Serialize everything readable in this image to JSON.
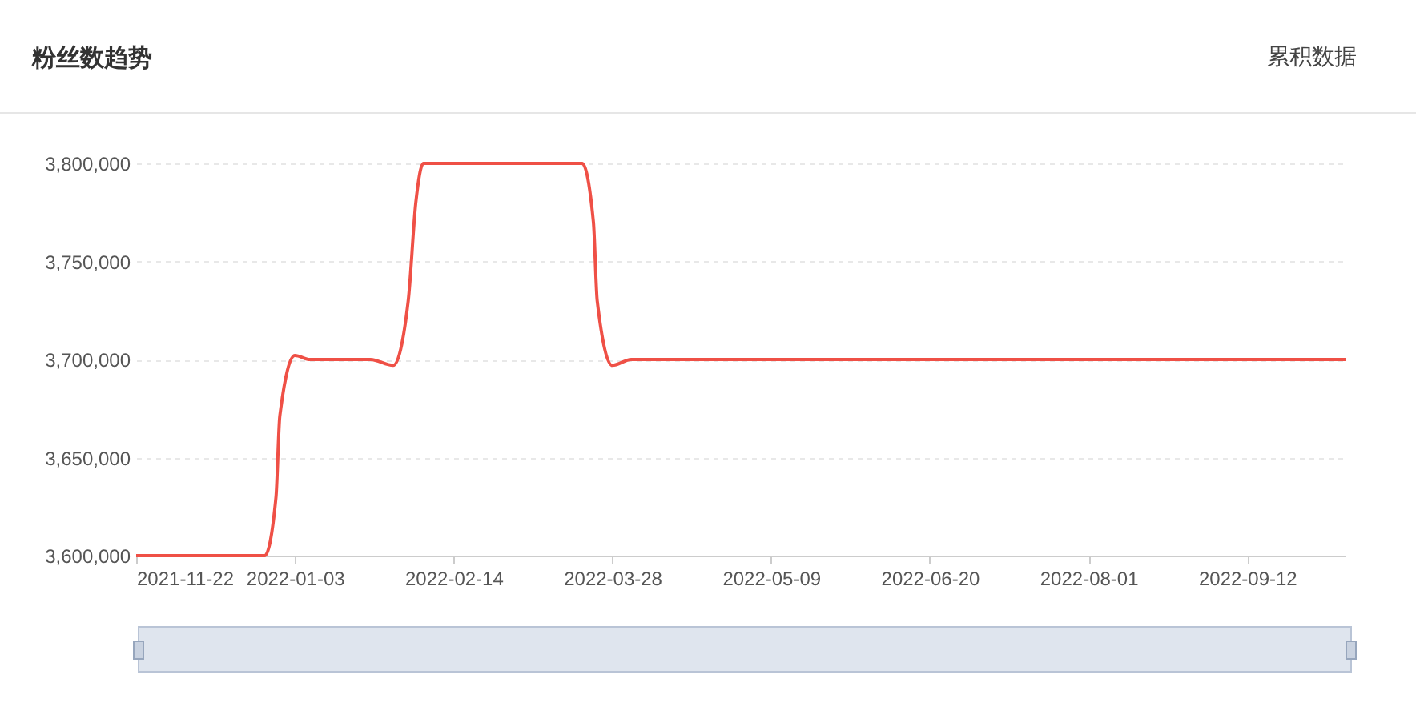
{
  "chart_data": {
    "type": "line",
    "title": "粉丝数趋势",
    "annotations": [
      "累积数据"
    ],
    "x": [
      "2021-11-22",
      "2021-12-26",
      "2021-12-29",
      "2021-12-30",
      "2022-01-03",
      "2022-01-07",
      "2022-01-23",
      "2022-01-29",
      "2022-02-02",
      "2022-02-04",
      "2022-02-06",
      "2022-03-20",
      "2022-03-23",
      "2022-03-24",
      "2022-03-28",
      "2022-04-02",
      "2022-10-08"
    ],
    "series": [
      {
        "color": "#ef5046",
        "values": [
          3600000,
          3600000,
          3630000,
          3671000,
          3702000,
          3700000,
          3700000,
          3697000,
          3730000,
          3780000,
          3800000,
          3800000,
          3770000,
          3730000,
          3697000,
          3700000,
          3700000
        ]
      }
    ],
    "xlim": [
      "2021-11-22",
      "2022-10-08"
    ],
    "xticks": [
      "2021-11-22",
      "2022-01-03",
      "2022-02-14",
      "2022-03-28",
      "2022-05-09",
      "2022-06-20",
      "2022-08-01",
      "2022-09-12"
    ],
    "ylim": [
      3600000,
      3800000
    ],
    "yticks": [
      {
        "value": 3600000,
        "label": "3,600,000"
      },
      {
        "value": 3650000,
        "label": "3,650,000"
      },
      {
        "value": 3700000,
        "label": "3,700,000"
      },
      {
        "value": 3750000,
        "label": "3,750,000"
      },
      {
        "value": 3800000,
        "label": "3,800,000"
      }
    ],
    "grid": "y",
    "marker": "none",
    "line_style": "solid"
  }
}
